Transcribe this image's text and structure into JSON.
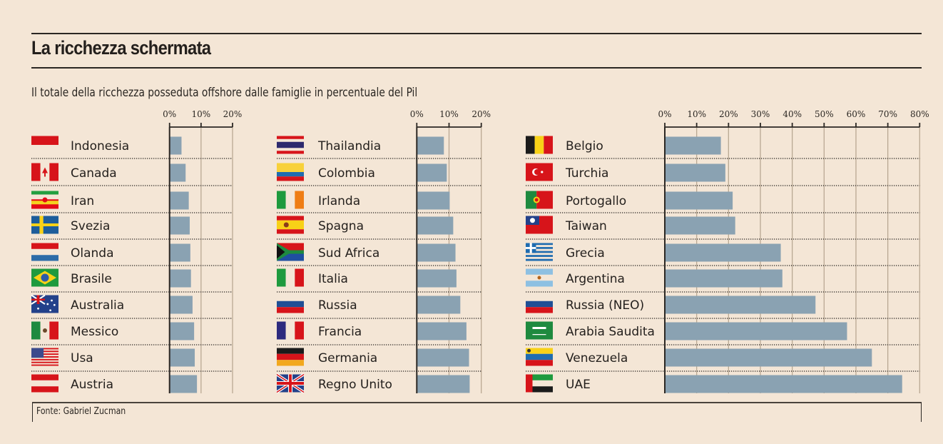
{
  "header": {
    "title": "La ricchezza schermata",
    "subtitle": "Il totale della ricchezza posseduta offshore dalle famiglie in percentuale del Pil"
  },
  "footer": {
    "source": "Fonte: Gabriel Zucman"
  },
  "colors": {
    "background": "#f4e6d6",
    "bar": "#8aa2b2",
    "axis": "#2b2723",
    "gridline": "#b9a893"
  },
  "chart_data": [
    {
      "type": "bar",
      "orientation": "horizontal",
      "title": "Il totale della ricchezza posseduta offshore dalle famiglie in percentuale del Pil",
      "xlabel": "",
      "ylabel": "",
      "xlim": [
        0,
        20
      ],
      "ticks": [
        0,
        10,
        20
      ],
      "tick_labels": [
        "0%",
        "10%",
        "20%"
      ],
      "grid": true,
      "categories": [
        "Indonesia",
        "Canada",
        "Iran",
        "Svezia",
        "Olanda",
        "Brasile",
        "Australia",
        "Messico",
        "Usa",
        "Austria"
      ],
      "flags": [
        "indonesia",
        "canada",
        "iran",
        "sweden",
        "netherlands",
        "brazil",
        "australia",
        "mexico",
        "usa",
        "austria"
      ],
      "values": [
        3.8,
        5.1,
        6.1,
        6.4,
        6.6,
        6.8,
        7.3,
        7.8,
        8.0,
        8.7
      ]
    },
    {
      "type": "bar",
      "orientation": "horizontal",
      "xlim": [
        0,
        20
      ],
      "ticks": [
        0,
        10,
        20
      ],
      "tick_labels": [
        "0%",
        "10%",
        "20%"
      ],
      "grid": true,
      "categories": [
        "Thailandia",
        "Colombia",
        "Irlanda",
        "Spagna",
        "Sud Africa",
        "Italia",
        "Russia",
        "Francia",
        "Germania",
        "Regno Unito"
      ],
      "flags": [
        "thailand",
        "colombia",
        "ireland",
        "spain",
        "south-africa",
        "italy",
        "russia",
        "france",
        "germany",
        "uk"
      ],
      "values": [
        8.4,
        9.3,
        10.2,
        11.3,
        12.0,
        12.3,
        13.5,
        15.4,
        16.2,
        16.4
      ]
    },
    {
      "type": "bar",
      "orientation": "horizontal",
      "xlim": [
        0,
        80
      ],
      "ticks": [
        0,
        10,
        20,
        30,
        40,
        50,
        60,
        70,
        80
      ],
      "tick_labels": [
        "0%",
        "10%",
        "20%",
        "30%",
        "40%",
        "50%",
        "60%",
        "70%",
        "80%"
      ],
      "grid": true,
      "categories": [
        "Belgio",
        "Turchia",
        "Portogallo",
        "Taiwan",
        "Grecia",
        "Argentina",
        "Russia (NEO)",
        "Arabia Saudita",
        "Venezuela",
        "UAE"
      ],
      "flags": [
        "belgium",
        "turkey",
        "portugal",
        "taiwan",
        "greece",
        "argentina",
        "russia",
        "saudi-arabia",
        "venezuela",
        "uae"
      ],
      "values": [
        17.6,
        19.0,
        21.3,
        22.1,
        36.4,
        36.9,
        47.3,
        57.2,
        65.0,
        74.5
      ]
    }
  ]
}
